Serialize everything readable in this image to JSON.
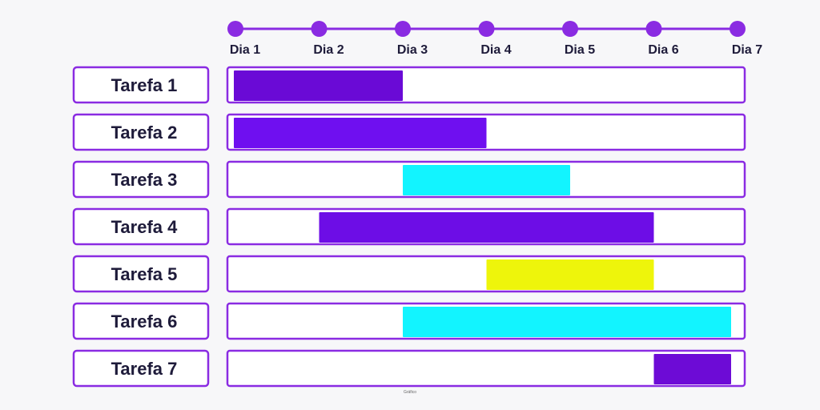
{
  "chart_data": {
    "type": "gantt",
    "title": "",
    "xlabel": "",
    "ylabel": "",
    "days": [
      "Dia 1",
      "Dia 2",
      "Dia 3",
      "Dia 4",
      "Dia 5",
      "Dia 6",
      "Dia 7"
    ],
    "tasks": [
      {
        "label": "Tarefa 1",
        "start": 1,
        "end": 3,
        "color": "#6a0ad6"
      },
      {
        "label": "Tarefa 2",
        "start": 1,
        "end": 4,
        "color": "#6f0ff0"
      },
      {
        "label": "Tarefa 3",
        "start": 3,
        "end": 5,
        "color": "#12f4ff"
      },
      {
        "label": "Tarefa 4",
        "start": 2,
        "end": 6,
        "color": "#6d0de6"
      },
      {
        "label": "Tarefa 5",
        "start": 4,
        "end": 6,
        "color": "#eef50b"
      },
      {
        "label": "Tarefa 6",
        "start": 3,
        "end": 7,
        "color": "#12f4ff"
      },
      {
        "label": "Tarefa 7",
        "start": 6,
        "end": 7,
        "color": "#6d0bd6"
      }
    ],
    "footnote": "Gráfico"
  },
  "colors": {
    "accent": "#8a2be2",
    "timeline": "#8a2be2",
    "text": "#1e1b3a",
    "row_fill": "#ffffff"
  }
}
